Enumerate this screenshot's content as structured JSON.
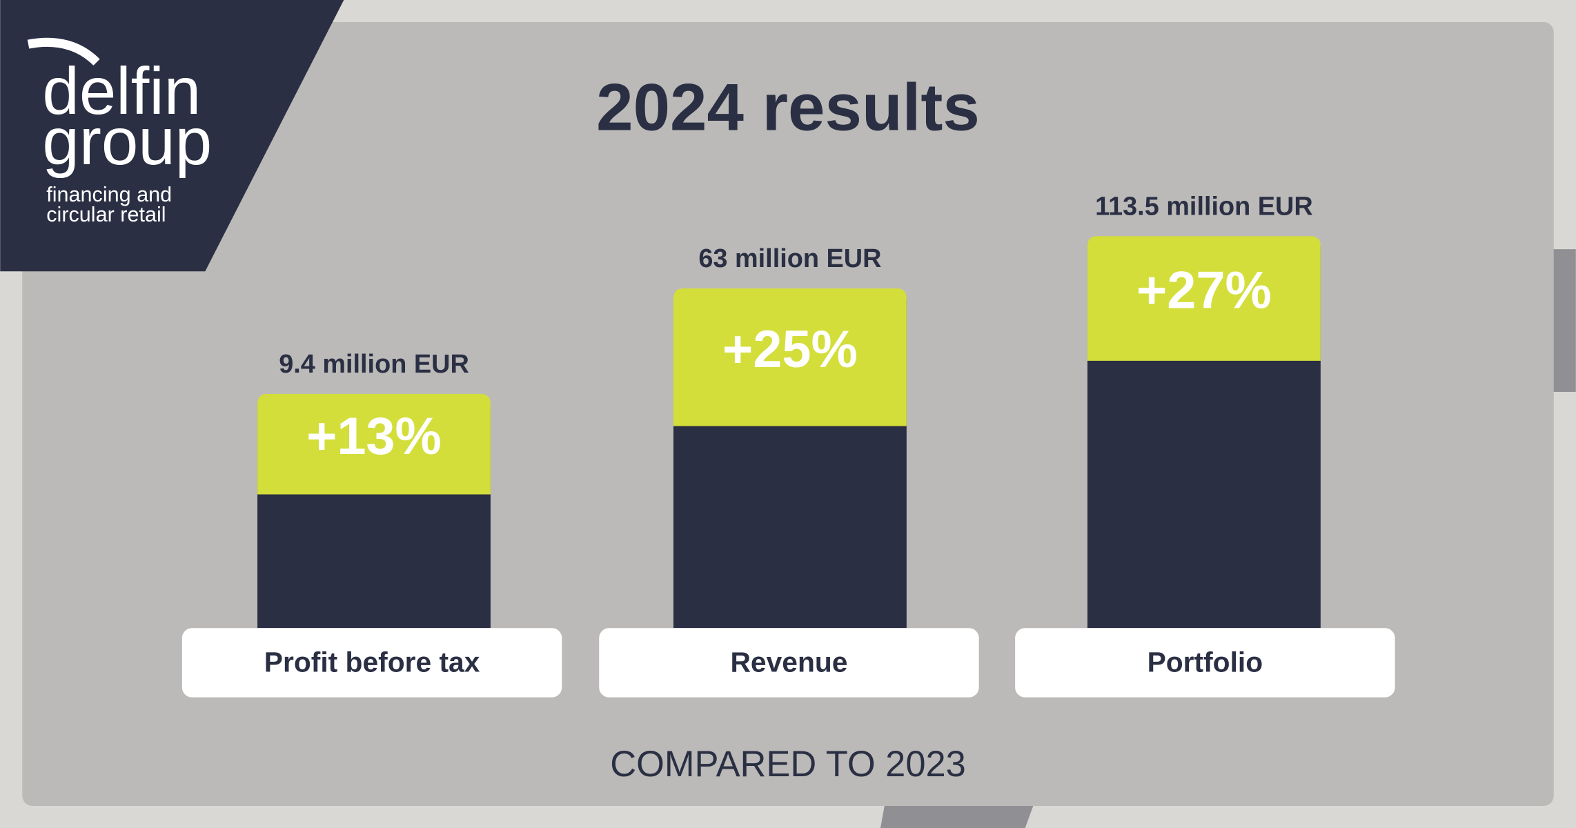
{
  "logo": {
    "line1": "delfin",
    "line2": "group",
    "tagline1": "financing and",
    "tagline2": "circular retail"
  },
  "title": "2024 results",
  "items": [
    {
      "amount": "9.4 million EUR",
      "change": "+13%",
      "label": "Profit before tax"
    },
    {
      "amount": "63 million EUR",
      "change": "+25%",
      "label": "Revenue"
    },
    {
      "amount": "113.5 million EUR",
      "change": "+27%",
      "label": "Portfolio"
    }
  ],
  "footer": "COMPARED TO 2023"
}
